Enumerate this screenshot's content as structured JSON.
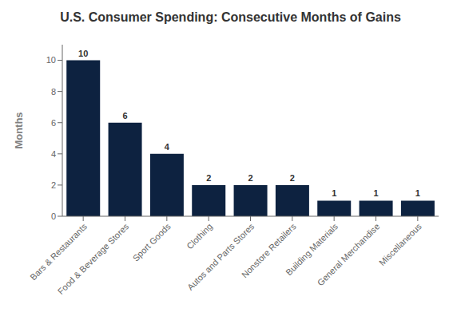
{
  "chart_data": {
    "type": "bar",
    "title": "U.S. Consumer Spending: Consecutive Months of Gains",
    "ylabel": "Months",
    "categories": [
      "Bars & Restaurants",
      "Food & Beverage Stores",
      "Sport Goods",
      "Clothing",
      "Autos and Parts Stores",
      "Nonstore Retailers",
      "Building Materials",
      "General Merchandise",
      "Miscellaneous"
    ],
    "values": [
      10,
      6,
      4,
      2,
      2,
      2,
      1,
      1,
      1
    ],
    "color": "#0d2240",
    "ylim": [
      0,
      11
    ],
    "yticks": [
      0,
      2,
      4,
      6,
      8,
      10
    ],
    "data_labels": true,
    "grid": false
  }
}
